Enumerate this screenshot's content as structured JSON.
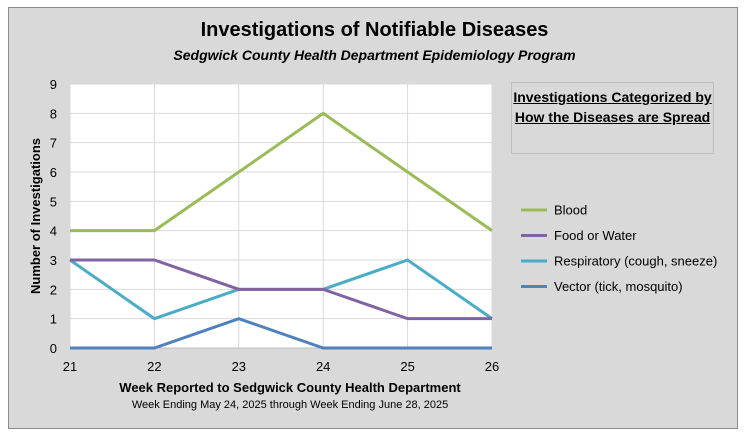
{
  "chart_data": {
    "type": "line",
    "title": "Investigations of Notifiable Diseases",
    "subtitle": "Sedgwick County Health Department Epidemiology Program",
    "xlabel": "Week Reported to Sedgwick County Health Department",
    "xsublabel": "Week Ending  May 24, 2025 through Week Ending  June 28, 2025",
    "ylabel": "Number of Investigations",
    "x": [
      21,
      22,
      23,
      24,
      25,
      26
    ],
    "ylim": [
      0,
      9
    ],
    "yticks": [
      0,
      1,
      2,
      3,
      4,
      5,
      6,
      7,
      8,
      9
    ],
    "grid": true,
    "legend_title": "Investigations Categorized by How the Diseases are Spread",
    "legend_position": "right",
    "series": [
      {
        "name": "Blood",
        "color": "#9bbb59",
        "values": [
          4,
          4,
          6,
          8,
          6,
          4
        ]
      },
      {
        "name": "Food or Water",
        "color": "#8064a2",
        "values": [
          3,
          3,
          2,
          2,
          1,
          1
        ]
      },
      {
        "name": "Respiratory (cough, sneeze)",
        "color": "#4bacc6",
        "values": [
          3,
          1,
          2,
          2,
          3,
          1
        ]
      },
      {
        "name": "Vector (tick, mosquito)",
        "color": "#4f81bd",
        "values": [
          0,
          0,
          1,
          0,
          0,
          0
        ]
      }
    ]
  }
}
